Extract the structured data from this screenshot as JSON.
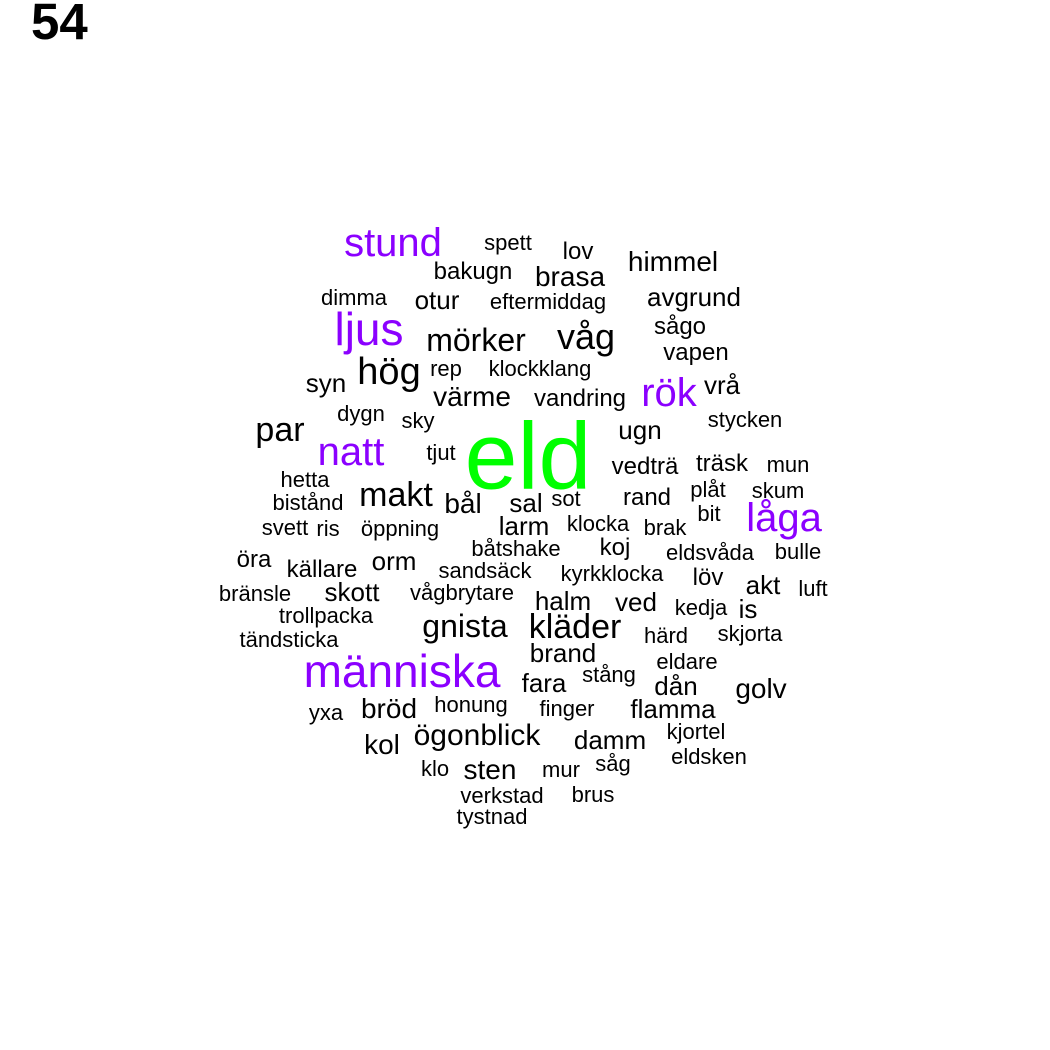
{
  "page_number": "54",
  "colors": {
    "top": "#00ff00",
    "high": "#8b00ff",
    "normal": "#000000"
  },
  "words": [
    {
      "text": "eld",
      "tier": "top"
    },
    {
      "text": "människa",
      "tier": "high"
    },
    {
      "text": "stund",
      "tier": "high"
    },
    {
      "text": "ljus",
      "tier": "high"
    },
    {
      "text": "natt",
      "tier": "high"
    },
    {
      "text": "låga",
      "tier": "high"
    },
    {
      "text": "rök",
      "tier": "high"
    },
    {
      "text": "våg",
      "tier": "normal"
    },
    {
      "text": "hög",
      "tier": "normal"
    },
    {
      "text": "mörker",
      "tier": "normal"
    },
    {
      "text": "kläder",
      "tier": "normal"
    },
    {
      "text": "gnista",
      "tier": "normal"
    },
    {
      "text": "makt",
      "tier": "normal"
    },
    {
      "text": "par",
      "tier": "normal"
    },
    {
      "text": "brasa",
      "tier": "normal"
    },
    {
      "text": "himmel",
      "tier": "normal"
    },
    {
      "text": "ögonblick",
      "tier": "normal"
    },
    {
      "text": "golv",
      "tier": "normal"
    },
    {
      "text": "brand",
      "tier": "normal"
    },
    {
      "text": "bål",
      "tier": "normal"
    },
    {
      "text": "sal",
      "tier": "normal"
    },
    {
      "text": "bröd",
      "tier": "normal"
    },
    {
      "text": "sten",
      "tier": "normal"
    },
    {
      "text": "fara",
      "tier": "normal"
    },
    {
      "text": "kol",
      "tier": "normal"
    },
    {
      "text": "larm",
      "tier": "normal"
    },
    {
      "text": "flamma",
      "tier": "normal"
    },
    {
      "text": "dån",
      "tier": "normal"
    },
    {
      "text": "värme",
      "tier": "normal"
    },
    {
      "text": "avgrund",
      "tier": "normal"
    },
    {
      "text": "otur",
      "tier": "normal"
    },
    {
      "text": "orm",
      "tier": "normal"
    },
    {
      "text": "skott",
      "tier": "normal"
    },
    {
      "text": "ugn",
      "tier": "normal"
    },
    {
      "text": "syn",
      "tier": "normal"
    },
    {
      "text": "akt",
      "tier": "normal"
    },
    {
      "text": "rand",
      "tier": "normal"
    },
    {
      "text": "ved",
      "tier": "normal"
    },
    {
      "text": "halm",
      "tier": "normal"
    },
    {
      "text": "damm",
      "tier": "normal"
    },
    {
      "text": "is",
      "tier": "normal"
    },
    {
      "text": "vedträ",
      "tier": "normal"
    },
    {
      "text": "källare",
      "tier": "normal"
    },
    {
      "text": "öra",
      "tier": "normal"
    },
    {
      "text": "spett",
      "tier": "normal"
    },
    {
      "text": "lov",
      "tier": "normal"
    },
    {
      "text": "bakugn",
      "tier": "normal"
    },
    {
      "text": "dimma",
      "tier": "normal"
    },
    {
      "text": "eftermiddag",
      "tier": "normal"
    },
    {
      "text": "sågo",
      "tier": "normal"
    },
    {
      "text": "vapen",
      "tier": "normal"
    },
    {
      "text": "rep",
      "tier": "normal"
    },
    {
      "text": "klockklang",
      "tier": "normal"
    },
    {
      "text": "vrå",
      "tier": "normal"
    },
    {
      "text": "vandring",
      "tier": "normal"
    },
    {
      "text": "dygn",
      "tier": "normal"
    },
    {
      "text": "sky",
      "tier": "normal"
    },
    {
      "text": "stycken",
      "tier": "normal"
    },
    {
      "text": "tjut",
      "tier": "normal"
    },
    {
      "text": "träsk",
      "tier": "normal"
    },
    {
      "text": "mun",
      "tier": "normal"
    },
    {
      "text": "hetta",
      "tier": "normal"
    },
    {
      "text": "plåt",
      "tier": "normal"
    },
    {
      "text": "skum",
      "tier": "normal"
    },
    {
      "text": "bistånd",
      "tier": "normal"
    },
    {
      "text": "sot",
      "tier": "normal"
    },
    {
      "text": "bit",
      "tier": "normal"
    },
    {
      "text": "svett",
      "tier": "normal"
    },
    {
      "text": "ris",
      "tier": "normal"
    },
    {
      "text": "öppning",
      "tier": "normal"
    },
    {
      "text": "klocka",
      "tier": "normal"
    },
    {
      "text": "brak",
      "tier": "normal"
    },
    {
      "text": "båtshake",
      "tier": "normal"
    },
    {
      "text": "koj",
      "tier": "normal"
    },
    {
      "text": "eldsvåda",
      "tier": "normal"
    },
    {
      "text": "bulle",
      "tier": "normal"
    },
    {
      "text": "sandsäck",
      "tier": "normal"
    },
    {
      "text": "kyrkklocka",
      "tier": "normal"
    },
    {
      "text": "löv",
      "tier": "normal"
    },
    {
      "text": "bränsle",
      "tier": "normal"
    },
    {
      "text": "vågbrytare",
      "tier": "normal"
    },
    {
      "text": "luft",
      "tier": "normal"
    },
    {
      "text": "kedja",
      "tier": "normal"
    },
    {
      "text": "trollpacka",
      "tier": "normal"
    },
    {
      "text": "tändsticka",
      "tier": "normal"
    },
    {
      "text": "härd",
      "tier": "normal"
    },
    {
      "text": "skjorta",
      "tier": "normal"
    },
    {
      "text": "stång",
      "tier": "normal"
    },
    {
      "text": "eldare",
      "tier": "normal"
    },
    {
      "text": "yxa",
      "tier": "normal"
    },
    {
      "text": "honung",
      "tier": "normal"
    },
    {
      "text": "finger",
      "tier": "normal"
    },
    {
      "text": "kjortel",
      "tier": "normal"
    },
    {
      "text": "eldsken",
      "tier": "normal"
    },
    {
      "text": "klo",
      "tier": "normal"
    },
    {
      "text": "mur",
      "tier": "normal"
    },
    {
      "text": "såg",
      "tier": "normal"
    },
    {
      "text": "verkstad",
      "tier": "normal"
    },
    {
      "text": "brus",
      "tier": "normal"
    },
    {
      "text": "tystnad",
      "tier": "normal"
    }
  ]
}
